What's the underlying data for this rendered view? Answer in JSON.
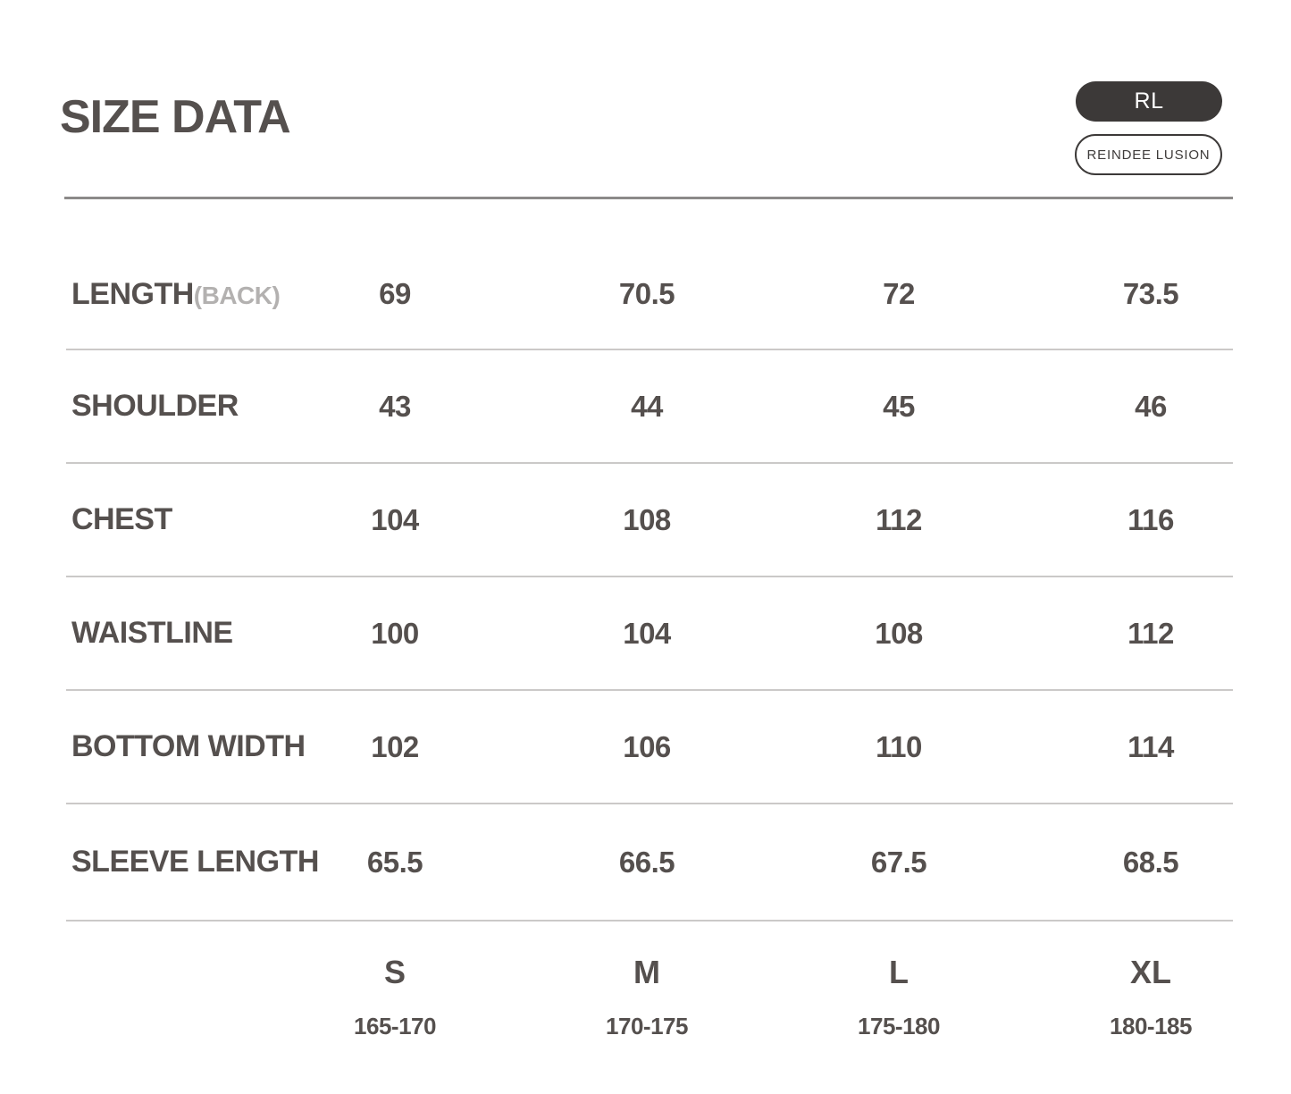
{
  "header": {
    "title": "SIZE DATA",
    "brand_badge_label": "RL",
    "brand_name_label": "REINDEE LUSION"
  },
  "table": {
    "rows": [
      {
        "label": "LENGTH",
        "suffix": "(BACK)",
        "values": [
          "69",
          "70.5",
          "72",
          "73.5"
        ]
      },
      {
        "label": "SHOULDER",
        "suffix": "",
        "values": [
          "43",
          "44",
          "45",
          "46"
        ]
      },
      {
        "label": "CHEST",
        "suffix": "",
        "values": [
          "104",
          "108",
          "112",
          "116"
        ]
      },
      {
        "label": "WAISTLINE",
        "suffix": "",
        "values": [
          "100",
          "104",
          "108",
          "112"
        ]
      },
      {
        "label": "BOTTOM WIDTH",
        "suffix": "",
        "values": [
          "102",
          "106",
          "110",
          "114"
        ]
      },
      {
        "label": "SLEEVE LENGTH",
        "suffix": "",
        "values": [
          "65.5",
          "66.5",
          "67.5",
          "68.5"
        ]
      }
    ],
    "sizes": [
      {
        "label": "S",
        "height_range": "165-170"
      },
      {
        "label": "M",
        "height_range": "170-175"
      },
      {
        "label": "L",
        "height_range": "175-180"
      },
      {
        "label": "XL",
        "height_range": "180-185"
      }
    ]
  },
  "colors": {
    "text": "#55504e",
    "muted_text": "#b3b1b0",
    "header_rule": "#8c8a89",
    "row_rule": "#cbc9c8",
    "badge_fill": "#3c3938",
    "badge_text": "#ffffff"
  },
  "chart_data": {
    "type": "table",
    "title": "SIZE DATA",
    "columns": [
      "S",
      "M",
      "L",
      "XL"
    ],
    "column_height_ranges": [
      "165-170",
      "170-175",
      "175-180",
      "180-185"
    ],
    "rows": [
      {
        "measurement": "LENGTH(BACK)",
        "values": [
          69,
          70.5,
          72,
          73.5
        ]
      },
      {
        "measurement": "SHOULDER",
        "values": [
          43,
          44,
          45,
          46
        ]
      },
      {
        "measurement": "CHEST",
        "values": [
          104,
          108,
          112,
          116
        ]
      },
      {
        "measurement": "WAISTLINE",
        "values": [
          100,
          104,
          108,
          112
        ]
      },
      {
        "measurement": "BOTTOM WIDTH",
        "values": [
          102,
          106,
          110,
          114
        ]
      },
      {
        "measurement": "SLEEVE LENGTH",
        "values": [
          65.5,
          66.5,
          67.5,
          68.5
        ]
      }
    ],
    "layout": {
      "grid": "row-separators-only",
      "legend_position": "none"
    }
  }
}
